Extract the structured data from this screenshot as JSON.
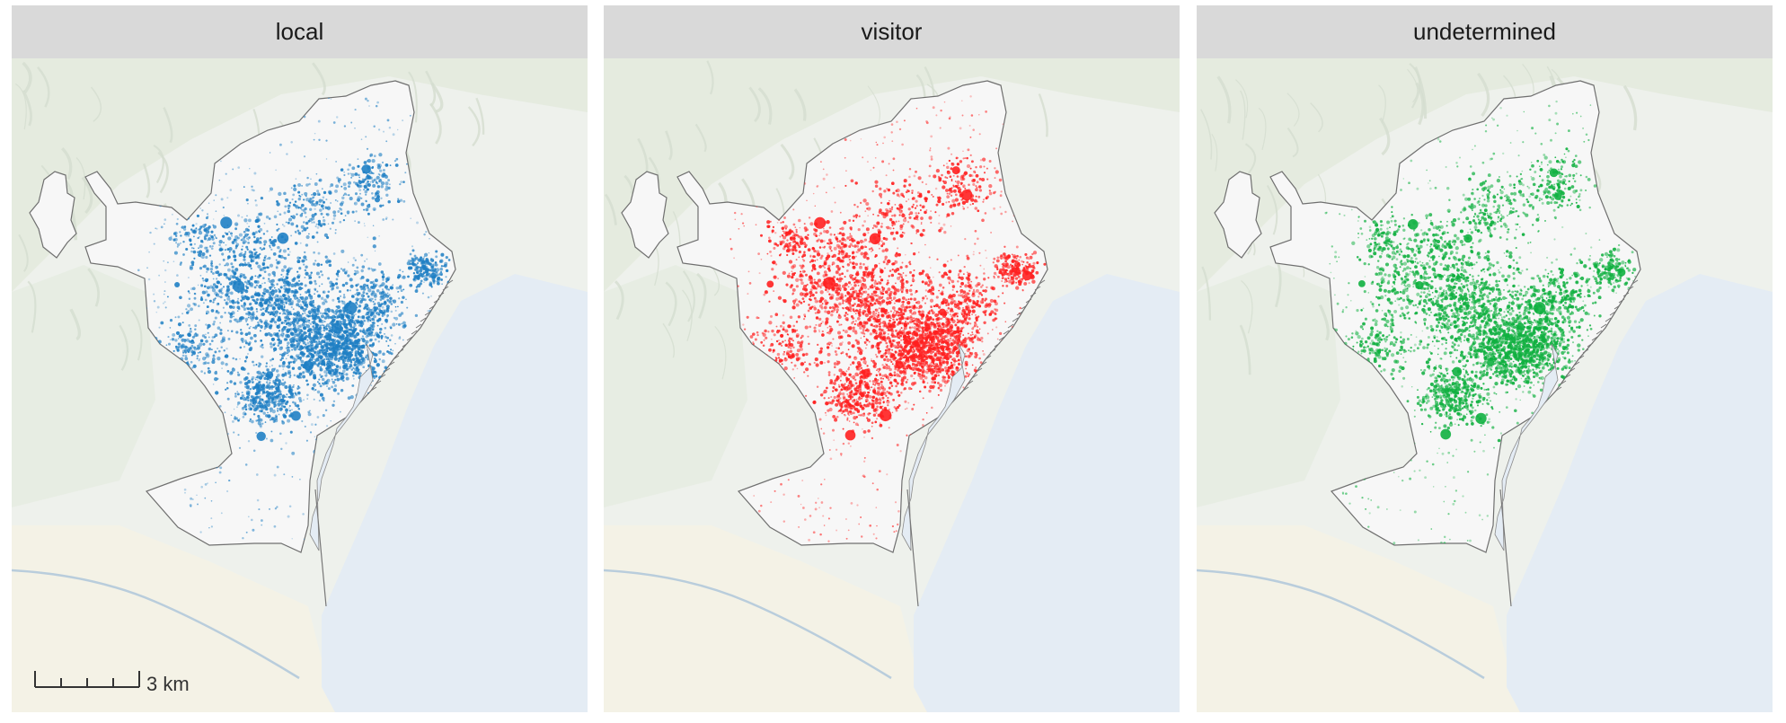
{
  "panels": [
    {
      "label": "local",
      "color": "#1f7fc4"
    },
    {
      "label": "visitor",
      "color": "#ff2020"
    },
    {
      "label": "undetermined",
      "color": "#10b040"
    }
  ],
  "scale_bar": {
    "label": "3 km"
  }
}
